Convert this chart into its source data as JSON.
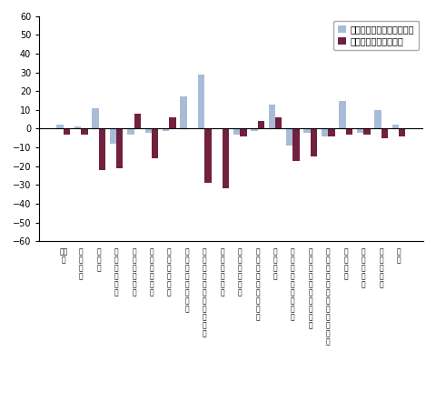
{
  "categories": [
    "鉱工\n業",
    "製\n造\n工\n業",
    "鉄\n銅\n業",
    "非\n鉄\n金\n属\n工\n業",
    "金\n属\n製\n品\n工\n業",
    "一\n般\n機\n械\n工\n業",
    "電\n気\n機\n械\n工\n業",
    "情\n報\n通\n信\n機\n械\n工\n業",
    "電\n子\n部\n品\n･\nデ\nバ\nイ\nス\n工\n業",
    "輸\n送\n機\n械\n工\n業",
    "精\n密\n機\n械\n工\n業",
    "窯\n業\n･\n土\n石\n製\n品\n工\n業",
    "化\n学\n工\n業",
    "石\n油\n･\n石\n炭\n製\n品\n工\n業",
    "プ\nラ\nス\nチ\nッ\nク\n製\n品\n工\n業",
    "パ\nル\nプ\n･\n紙\n･\n紙\n加\n工\n品\n工\n業",
    "繊\n維\n工\n業",
    "食\n料\n品\n工\n業",
    "そ\nの\n他\n工\n業",
    "鉱\n業"
  ],
  "mom": [
    2,
    1,
    11,
    -8,
    -3,
    -2,
    -1,
    17,
    29,
    0,
    -3,
    -1,
    13,
    -9,
    -2,
    -4,
    15,
    -2,
    10,
    2
  ],
  "yoy": [
    -3,
    -3,
    -22,
    -21,
    8,
    -16,
    6,
    0,
    -29,
    -32,
    -4,
    4,
    6,
    -17,
    -15,
    -4,
    -3,
    -3,
    -5,
    -4
  ],
  "mom_color": "#a8bcd8",
  "yoy_color": "#722040",
  "ylim": [
    -60,
    60
  ],
  "yticks": [
    -60,
    -50,
    -40,
    -30,
    -20,
    -10,
    0,
    10,
    20,
    30,
    40,
    50,
    60
  ],
  "legend_mom": "前月比（季節調整済指数）",
  "legend_yoy": "前年同月比（原指数）",
  "bar_width": 0.38,
  "tick_fontsize": 7,
  "label_fontsize": 5.5,
  "legend_fontsize": 7,
  "bg_color": "#ffffff",
  "plot_bg_color": "#ffffff",
  "grid_color": "#cccccc"
}
